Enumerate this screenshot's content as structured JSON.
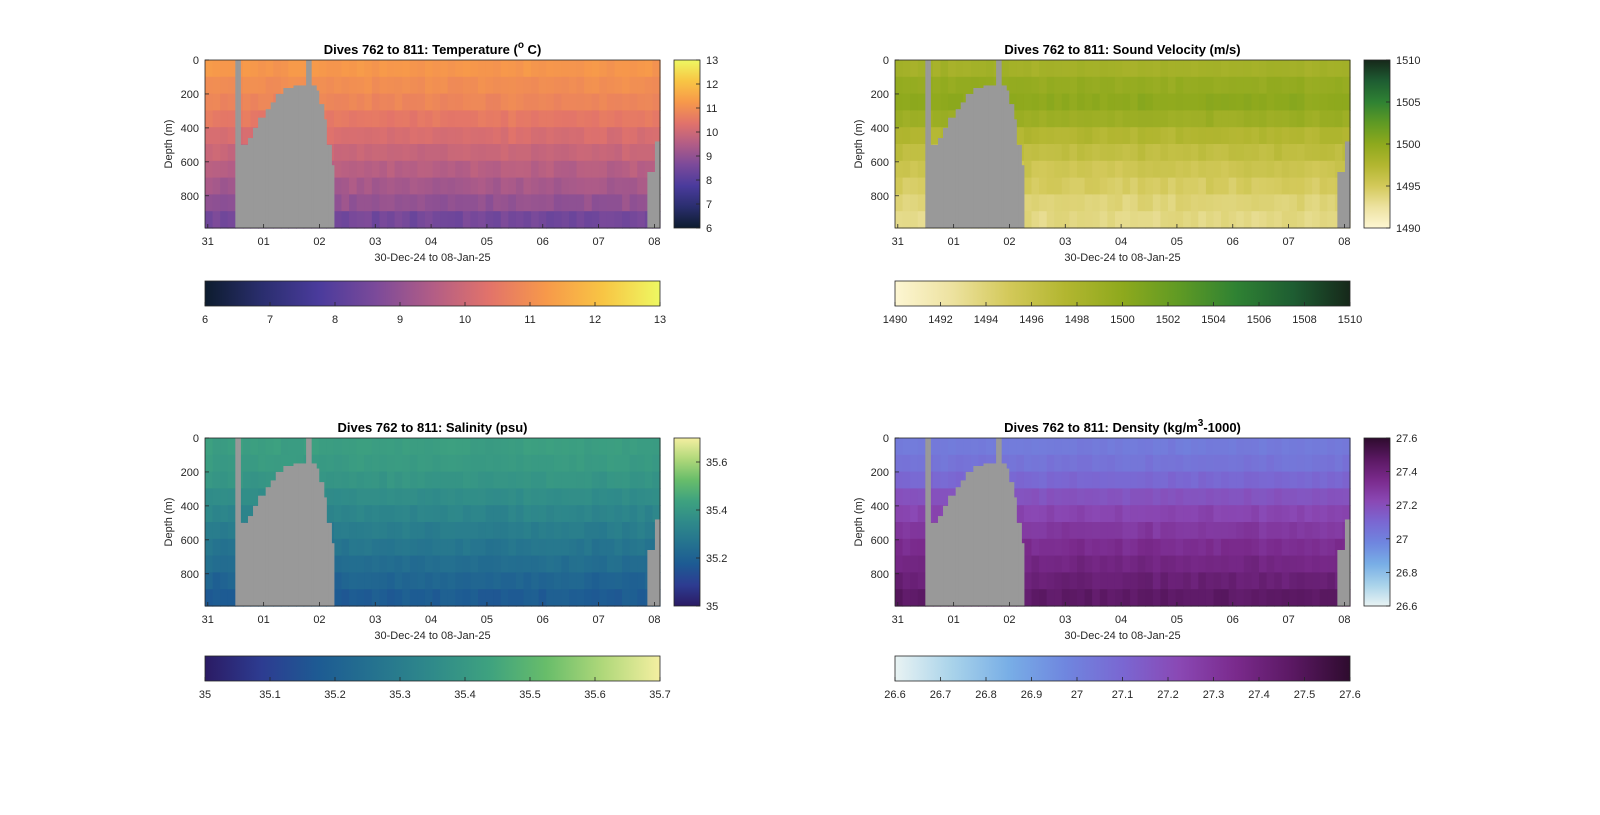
{
  "figure": {
    "background": "#ffffff"
  },
  "chart_data": [
    {
      "id": "temperature",
      "type": "heatmap",
      "title_main": "Dives 762 to 811: Temperature (",
      "title_sup": "o",
      "title_end": " C)",
      "xlabel": "30-Dec-24 to 08-Jan-25",
      "ylabel": "Depth (m)",
      "y_ticks": [
        "0",
        "200",
        "400",
        "600",
        "800"
      ],
      "y_tick_values": [
        0,
        200,
        400,
        600,
        800
      ],
      "ylim": [
        0,
        990
      ],
      "y_reversed": true,
      "x_ticks": [
        "31",
        "01",
        "02",
        "03",
        "04",
        "05",
        "06",
        "07",
        "08"
      ],
      "x_tick_values": [
        1,
        2,
        3,
        4,
        5,
        6,
        7,
        8,
        9
      ],
      "xlim": [
        0.95,
        9.1
      ],
      "colorbar_right_ticks": [
        "13",
        "12",
        "11",
        "10",
        "9",
        "8",
        "7",
        "6"
      ],
      "colorbar_bottom_ticks": [
        "6",
        "7",
        "8",
        "9",
        "10",
        "11",
        "12",
        "13"
      ],
      "clim": [
        6,
        13
      ],
      "colormap": [
        "#0d1c2e",
        "#2a2e6e",
        "#4a3b9c",
        "#7b4a9a",
        "#b25d86",
        "#e2736a",
        "#f7994a",
        "#f8c544",
        "#eef862"
      ],
      "profile": [
        11.2,
        11.0,
        10.8,
        10.5,
        10.2,
        9.9,
        9.6,
        9.3,
        9.0,
        8.5
      ],
      "bad_data_color": "#999999"
    },
    {
      "id": "sound_velocity",
      "type": "heatmap",
      "title_main": "Dives 762 to 811: Sound Velocity (m/s)",
      "title_sup": "",
      "title_end": "",
      "xlabel": "30-Dec-24 to 08-Jan-25",
      "ylabel": "Depth (m)",
      "y_ticks": [
        "0",
        "200",
        "400",
        "600",
        "800"
      ],
      "y_tick_values": [
        0,
        200,
        400,
        600,
        800
      ],
      "ylim": [
        0,
        990
      ],
      "y_reversed": true,
      "x_ticks": [
        "31",
        "01",
        "02",
        "03",
        "04",
        "05",
        "06",
        "07",
        "08"
      ],
      "x_tick_values": [
        1,
        2,
        3,
        4,
        5,
        6,
        7,
        8,
        9
      ],
      "xlim": [
        0.95,
        9.1
      ],
      "colorbar_right_ticks": [
        "1510",
        "1505",
        "1500",
        "1495",
        "1490"
      ],
      "colorbar_bottom_ticks": [
        "1490",
        "1492",
        "1494",
        "1496",
        "1498",
        "1500",
        "1502",
        "1504",
        "1506",
        "1508",
        "1510"
      ],
      "clim": [
        1490,
        1510
      ],
      "colormap": [
        "#fdf6d3",
        "#ede2a0",
        "#d3c95a",
        "#b2b630",
        "#8ea91d",
        "#5f9a24",
        "#2f8233",
        "#1e5d32",
        "#16281a"
      ],
      "profile": [
        1498.5,
        1499.5,
        1500.0,
        1499.0,
        1497.5,
        1496.5,
        1495.5,
        1494.8,
        1494.0,
        1493.5
      ],
      "bad_data_color": "#999999"
    },
    {
      "id": "salinity",
      "type": "heatmap",
      "title_main": "Dives 762 to 811: Salinity (psu)",
      "title_sup": "",
      "title_end": "",
      "xlabel": "30-Dec-24 to 08-Jan-25",
      "ylabel": "Depth (m)",
      "y_ticks": [
        "0",
        "200",
        "400",
        "600",
        "800"
      ],
      "y_tick_values": [
        0,
        200,
        400,
        600,
        800
      ],
      "ylim": [
        0,
        990
      ],
      "y_reversed": true,
      "x_ticks": [
        "31",
        "01",
        "02",
        "03",
        "04",
        "05",
        "06",
        "07",
        "08"
      ],
      "x_tick_values": [
        1,
        2,
        3,
        4,
        5,
        6,
        7,
        8,
        9
      ],
      "xlim": [
        0.95,
        9.1
      ],
      "colorbar_right_ticks": [
        "35.6",
        "35.4",
        "35.2",
        "35"
      ],
      "colorbar_bottom_ticks": [
        "35",
        "35.1",
        "35.2",
        "35.3",
        "35.4",
        "35.5",
        "35.6",
        "35.7"
      ],
      "clim": [
        35,
        35.7
      ],
      "colormap": [
        "#2b1b64",
        "#2d3c91",
        "#1d5b93",
        "#25738f",
        "#2f8a8a",
        "#3ea27f",
        "#68bd6a",
        "#b0d87a",
        "#f4efa1"
      ],
      "profile": [
        35.42,
        35.41,
        35.39,
        35.36,
        35.33,
        35.3,
        35.27,
        35.24,
        35.21,
        35.18
      ],
      "bad_data_color": "#999999"
    },
    {
      "id": "density",
      "type": "heatmap",
      "title_main": "Dives 762 to 811: Density (kg/m",
      "title_sup": "3",
      "title_end": "-1000)",
      "xlabel": "30-Dec-24 to 08-Jan-25",
      "ylabel": "Depth (m)",
      "y_ticks": [
        "0",
        "200",
        "400",
        "600",
        "800"
      ],
      "y_tick_values": [
        0,
        200,
        400,
        600,
        800
      ],
      "ylim": [
        0,
        990
      ],
      "y_reversed": true,
      "x_ticks": [
        "31",
        "01",
        "02",
        "03",
        "04",
        "05",
        "06",
        "07",
        "08"
      ],
      "x_tick_values": [
        1,
        2,
        3,
        4,
        5,
        6,
        7,
        8,
        9
      ],
      "xlim": [
        0.95,
        9.1
      ],
      "colorbar_right_ticks": [
        "27.6",
        "27.4",
        "27.2",
        "27",
        "26.8",
        "26.6"
      ],
      "colorbar_bottom_ticks": [
        "26.6",
        "26.7",
        "26.8",
        "26.9",
        "27",
        "27.1",
        "27.2",
        "27.3",
        "27.4",
        "27.5",
        "27.6"
      ],
      "clim": [
        26.6,
        27.6
      ],
      "colormap": [
        "#e9f3f3",
        "#a9d3ea",
        "#78aee6",
        "#6f86df",
        "#7a67d2",
        "#8a48b4",
        "#7a2a8c",
        "#5a1862",
        "#2e0b2e"
      ],
      "profile": [
        27.02,
        27.05,
        27.1,
        27.18,
        27.24,
        27.29,
        27.34,
        27.38,
        27.42,
        27.46
      ],
      "bad_data_color": "#999999"
    }
  ]
}
